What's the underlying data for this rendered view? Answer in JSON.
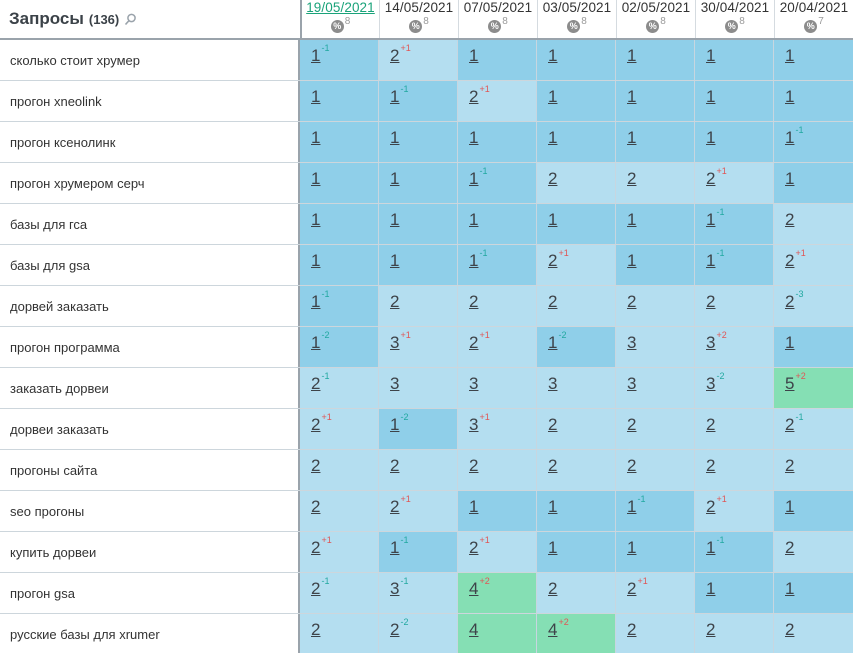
{
  "header": {
    "title": "Запросы",
    "count": "(136)",
    "dates": [
      {
        "label": "19/05/2021",
        "pct": "8"
      },
      {
        "label": "14/05/2021",
        "pct": "8"
      },
      {
        "label": "07/05/2021",
        "pct": "8"
      },
      {
        "label": "03/05/2021",
        "pct": "8"
      },
      {
        "label": "02/05/2021",
        "pct": "8"
      },
      {
        "label": "30/04/2021",
        "pct": "8"
      },
      {
        "label": "20/04/2021",
        "pct": "7"
      }
    ],
    "pct_icon_symbol": "%"
  },
  "rows": [
    {
      "query": "сколько стоит хрумер",
      "cells": [
        {
          "v": "1",
          "d": "-1",
          "dir": "up"
        },
        {
          "v": "2",
          "d": "+1",
          "dir": "down"
        },
        {
          "v": "1",
          "d": "",
          "dir": ""
        },
        {
          "v": "1",
          "d": "",
          "dir": ""
        },
        {
          "v": "1",
          "d": "",
          "dir": ""
        },
        {
          "v": "1",
          "d": "",
          "dir": ""
        },
        {
          "v": "1",
          "d": "",
          "dir": ""
        }
      ]
    },
    {
      "query": "прогон xneolink",
      "cells": [
        {
          "v": "1",
          "d": "",
          "dir": ""
        },
        {
          "v": "1",
          "d": "-1",
          "dir": "up"
        },
        {
          "v": "2",
          "d": "+1",
          "dir": "down"
        },
        {
          "v": "1",
          "d": "",
          "dir": ""
        },
        {
          "v": "1",
          "d": "",
          "dir": ""
        },
        {
          "v": "1",
          "d": "",
          "dir": ""
        },
        {
          "v": "1",
          "d": "",
          "dir": ""
        }
      ]
    },
    {
      "query": "прогон ксенолинк",
      "cells": [
        {
          "v": "1",
          "d": "",
          "dir": ""
        },
        {
          "v": "1",
          "d": "",
          "dir": ""
        },
        {
          "v": "1",
          "d": "",
          "dir": ""
        },
        {
          "v": "1",
          "d": "",
          "dir": ""
        },
        {
          "v": "1",
          "d": "",
          "dir": ""
        },
        {
          "v": "1",
          "d": "",
          "dir": ""
        },
        {
          "v": "1",
          "d": "-1",
          "dir": "up"
        }
      ]
    },
    {
      "query": "прогон хрумером серч",
      "cells": [
        {
          "v": "1",
          "d": "",
          "dir": ""
        },
        {
          "v": "1",
          "d": "",
          "dir": ""
        },
        {
          "v": "1",
          "d": "-1",
          "dir": "up"
        },
        {
          "v": "2",
          "d": "",
          "dir": ""
        },
        {
          "v": "2",
          "d": "",
          "dir": ""
        },
        {
          "v": "2",
          "d": "+1",
          "dir": "down"
        },
        {
          "v": "1",
          "d": "",
          "dir": ""
        }
      ]
    },
    {
      "query": "базы для гса",
      "cells": [
        {
          "v": "1",
          "d": "",
          "dir": ""
        },
        {
          "v": "1",
          "d": "",
          "dir": ""
        },
        {
          "v": "1",
          "d": "",
          "dir": ""
        },
        {
          "v": "1",
          "d": "",
          "dir": ""
        },
        {
          "v": "1",
          "d": "",
          "dir": ""
        },
        {
          "v": "1",
          "d": "-1",
          "dir": "up"
        },
        {
          "v": "2",
          "d": "",
          "dir": ""
        }
      ]
    },
    {
      "query": "базы для gsa",
      "cells": [
        {
          "v": "1",
          "d": "",
          "dir": ""
        },
        {
          "v": "1",
          "d": "",
          "dir": ""
        },
        {
          "v": "1",
          "d": "-1",
          "dir": "up"
        },
        {
          "v": "2",
          "d": "+1",
          "dir": "down"
        },
        {
          "v": "1",
          "d": "",
          "dir": ""
        },
        {
          "v": "1",
          "d": "-1",
          "dir": "up"
        },
        {
          "v": "2",
          "d": "+1",
          "dir": "down"
        }
      ]
    },
    {
      "query": "дорвей заказать",
      "cells": [
        {
          "v": "1",
          "d": "-1",
          "dir": "up"
        },
        {
          "v": "2",
          "d": "",
          "dir": ""
        },
        {
          "v": "2",
          "d": "",
          "dir": ""
        },
        {
          "v": "2",
          "d": "",
          "dir": ""
        },
        {
          "v": "2",
          "d": "",
          "dir": ""
        },
        {
          "v": "2",
          "d": "",
          "dir": ""
        },
        {
          "v": "2",
          "d": "-3",
          "dir": "up"
        }
      ]
    },
    {
      "query": "прогон программа",
      "cells": [
        {
          "v": "1",
          "d": "-2",
          "dir": "up"
        },
        {
          "v": "3",
          "d": "+1",
          "dir": "down"
        },
        {
          "v": "2",
          "d": "+1",
          "dir": "down"
        },
        {
          "v": "1",
          "d": "-2",
          "dir": "up"
        },
        {
          "v": "3",
          "d": "",
          "dir": ""
        },
        {
          "v": "3",
          "d": "+2",
          "dir": "down"
        },
        {
          "v": "1",
          "d": "",
          "dir": ""
        }
      ]
    },
    {
      "query": "заказать дорвеи",
      "cells": [
        {
          "v": "2",
          "d": "-1",
          "dir": "up"
        },
        {
          "v": "3",
          "d": "",
          "dir": ""
        },
        {
          "v": "3",
          "d": "",
          "dir": ""
        },
        {
          "v": "3",
          "d": "",
          "dir": ""
        },
        {
          "v": "3",
          "d": "",
          "dir": ""
        },
        {
          "v": "3",
          "d": "-2",
          "dir": "up"
        },
        {
          "v": "5",
          "d": "+2",
          "dir": "down"
        }
      ]
    },
    {
      "query": "дорвеи заказать",
      "cells": [
        {
          "v": "2",
          "d": "+1",
          "dir": "down"
        },
        {
          "v": "1",
          "d": "-2",
          "dir": "up"
        },
        {
          "v": "3",
          "d": "+1",
          "dir": "down"
        },
        {
          "v": "2",
          "d": "",
          "dir": ""
        },
        {
          "v": "2",
          "d": "",
          "dir": ""
        },
        {
          "v": "2",
          "d": "",
          "dir": ""
        },
        {
          "v": "2",
          "d": "-1",
          "dir": "up"
        }
      ]
    },
    {
      "query": "прогоны сайта",
      "cells": [
        {
          "v": "2",
          "d": "",
          "dir": ""
        },
        {
          "v": "2",
          "d": "",
          "dir": ""
        },
        {
          "v": "2",
          "d": "",
          "dir": ""
        },
        {
          "v": "2",
          "d": "",
          "dir": ""
        },
        {
          "v": "2",
          "d": "",
          "dir": ""
        },
        {
          "v": "2",
          "d": "",
          "dir": ""
        },
        {
          "v": "2",
          "d": "",
          "dir": ""
        }
      ]
    },
    {
      "query": "seo прогоны",
      "cells": [
        {
          "v": "2",
          "d": "",
          "dir": ""
        },
        {
          "v": "2",
          "d": "+1",
          "dir": "down"
        },
        {
          "v": "1",
          "d": "",
          "dir": ""
        },
        {
          "v": "1",
          "d": "",
          "dir": ""
        },
        {
          "v": "1",
          "d": "-1",
          "dir": "up"
        },
        {
          "v": "2",
          "d": "+1",
          "dir": "down"
        },
        {
          "v": "1",
          "d": "",
          "dir": ""
        }
      ]
    },
    {
      "query": "купить дорвеи",
      "cells": [
        {
          "v": "2",
          "d": "+1",
          "dir": "down"
        },
        {
          "v": "1",
          "d": "-1",
          "dir": "up"
        },
        {
          "v": "2",
          "d": "+1",
          "dir": "down"
        },
        {
          "v": "1",
          "d": "",
          "dir": ""
        },
        {
          "v": "1",
          "d": "",
          "dir": ""
        },
        {
          "v": "1",
          "d": "-1",
          "dir": "up"
        },
        {
          "v": "2",
          "d": "",
          "dir": ""
        }
      ]
    },
    {
      "query": "прогон gsa",
      "cells": [
        {
          "v": "2",
          "d": "-1",
          "dir": "up"
        },
        {
          "v": "3",
          "d": "-1",
          "dir": "up"
        },
        {
          "v": "4",
          "d": "+2",
          "dir": "down"
        },
        {
          "v": "2",
          "d": "",
          "dir": ""
        },
        {
          "v": "2",
          "d": "+1",
          "dir": "down"
        },
        {
          "v": "1",
          "d": "",
          "dir": ""
        },
        {
          "v": "1",
          "d": "",
          "dir": ""
        }
      ]
    },
    {
      "query": "русские базы для xrumer",
      "cells": [
        {
          "v": "2",
          "d": "",
          "dir": ""
        },
        {
          "v": "2",
          "d": "-2",
          "dir": "up"
        },
        {
          "v": "4",
          "d": "",
          "dir": ""
        },
        {
          "v": "4",
          "d": "+2",
          "dir": "down"
        },
        {
          "v": "2",
          "d": "",
          "dir": ""
        },
        {
          "v": "2",
          "d": "",
          "dir": ""
        },
        {
          "v": "2",
          "d": "",
          "dir": ""
        }
      ]
    }
  ],
  "colors": {
    "pos1": "#8fcfe9",
    "pos2_3": "#b4def0",
    "pos4_5": "#85dfb4",
    "delta_up": "#21a8a0",
    "delta_down": "#e05555",
    "active_date": "#1aa37a"
  },
  "icons": {
    "search": "magnifier-icon",
    "percent": "percent-circle-icon"
  }
}
